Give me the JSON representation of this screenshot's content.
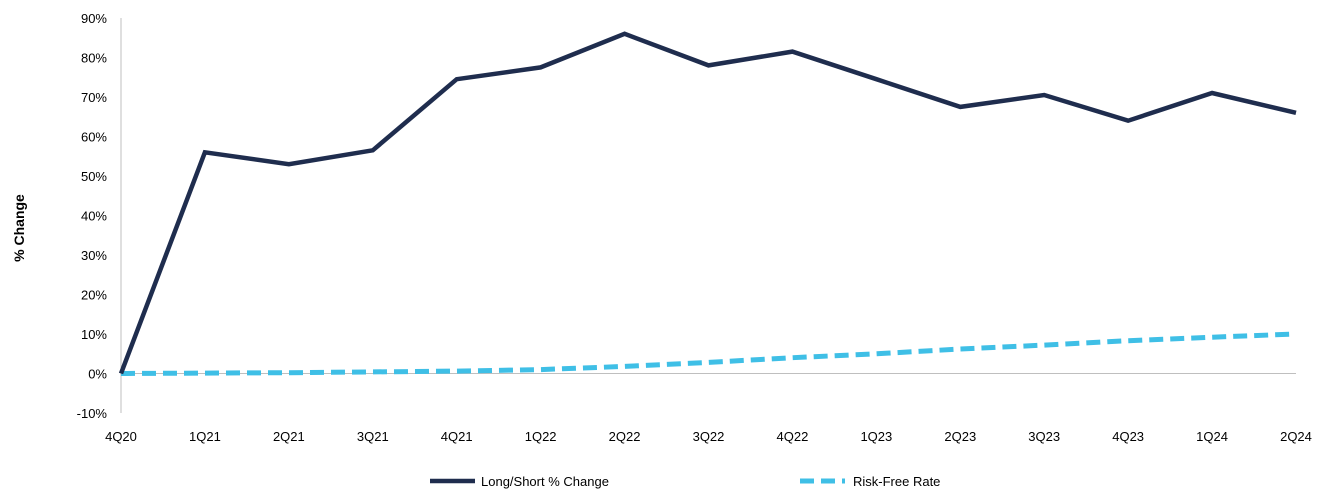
{
  "chart_data": {
    "type": "line",
    "title": "",
    "xlabel": "",
    "ylabel": "% Change",
    "categories": [
      "4Q20",
      "1Q21",
      "2Q21",
      "3Q21",
      "4Q21",
      "1Q22",
      "2Q22",
      "3Q22",
      "4Q22",
      "1Q23",
      "2Q23",
      "3Q23",
      "4Q23",
      "1Q24",
      "2Q24"
    ],
    "ylim": [
      -10,
      90
    ],
    "yticks": [
      -10,
      0,
      10,
      20,
      30,
      40,
      50,
      60,
      70,
      80,
      90
    ],
    "ytick_labels": [
      "-10%",
      "0%",
      "10%",
      "20%",
      "30%",
      "40%",
      "50%",
      "60%",
      "70%",
      "80%",
      "90%"
    ],
    "grid": false,
    "legend_position": "bottom-center",
    "series": [
      {
        "name": "Long/Short % Change",
        "color": "#1f2d4e",
        "style": "solid",
        "values": [
          0,
          56,
          53,
          56.5,
          74.5,
          77.5,
          86,
          78,
          81.5,
          74.5,
          67.5,
          70.5,
          64,
          71,
          66
        ]
      },
      {
        "name": "Risk-Free Rate",
        "color": "#3fbfe6",
        "style": "dashed",
        "values": [
          0,
          0.1,
          0.2,
          0.4,
          0.6,
          1.0,
          1.8,
          2.8,
          4.0,
          5.0,
          6.2,
          7.2,
          8.3,
          9.2,
          10.0
        ]
      }
    ]
  }
}
